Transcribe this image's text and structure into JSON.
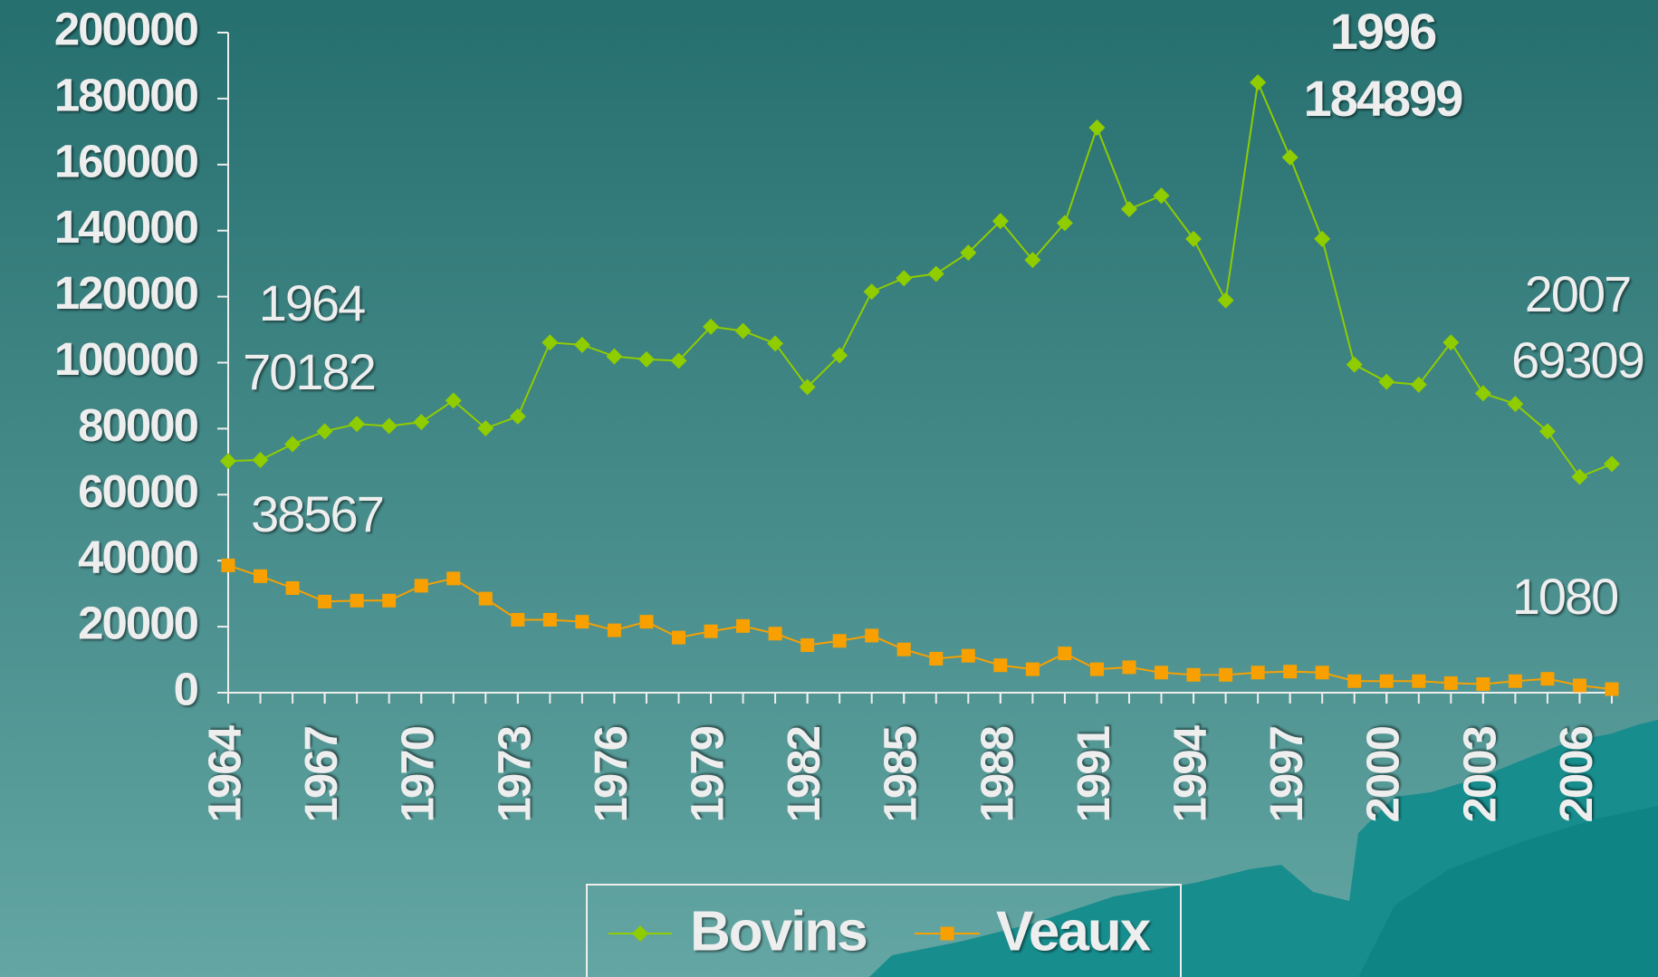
{
  "chart_data": {
    "type": "line",
    "x": [
      1964,
      1965,
      1966,
      1967,
      1968,
      1969,
      1970,
      1971,
      1972,
      1973,
      1974,
      1975,
      1976,
      1977,
      1978,
      1979,
      1980,
      1981,
      1982,
      1983,
      1984,
      1985,
      1986,
      1987,
      1988,
      1989,
      1990,
      1991,
      1992,
      1993,
      1994,
      1995,
      1996,
      1997,
      1998,
      1999,
      2000,
      2001,
      2002,
      2003,
      2004,
      2005,
      2006,
      2007
    ],
    "xlim": [
      1964,
      2007
    ],
    "xticks": [
      1964,
      1967,
      1970,
      1973,
      1976,
      1979,
      1982,
      1985,
      1988,
      1991,
      1994,
      1997,
      2000,
      2003,
      2006
    ],
    "ylim": [
      0,
      200000
    ],
    "yticks": [
      0,
      20000,
      40000,
      60000,
      80000,
      100000,
      120000,
      140000,
      160000,
      180000,
      200000
    ],
    "series": [
      {
        "name": "Bovins",
        "color": "#8fcc00",
        "marker": "diamond",
        "values": [
          70182,
          70500,
          75300,
          79200,
          81400,
          80800,
          82000,
          88500,
          80100,
          83700,
          106100,
          105400,
          101900,
          101000,
          100600,
          110900,
          109600,
          105800,
          92600,
          102200,
          121500,
          125600,
          126900,
          133300,
          142900,
          131100,
          142300,
          171200,
          146500,
          150600,
          137500,
          118900,
          184899,
          162200,
          137500,
          99400,
          94200,
          93300,
          106100,
          90700,
          87500,
          79200,
          65400,
          69309
        ]
      },
      {
        "name": "Veaux",
        "color": "#f7a000",
        "marker": "square",
        "values": [
          38567,
          35300,
          31700,
          27600,
          27900,
          27900,
          32400,
          34600,
          28500,
          22100,
          22100,
          21500,
          18900,
          21500,
          16700,
          18600,
          20200,
          17900,
          14400,
          15700,
          17300,
          13100,
          10300,
          11200,
          8300,
          7100,
          11900,
          7100,
          7700,
          6100,
          5400,
          5400,
          6100,
          6400,
          6100,
          3500,
          3500,
          3500,
          2900,
          2600,
          3500,
          4200,
          2200,
          1080
        ]
      }
    ],
    "annotations": [
      "1964",
      "70182",
      "38567",
      "1996",
      "184899",
      "2007",
      "69309",
      "1080"
    ],
    "legend": "bottom"
  }
}
